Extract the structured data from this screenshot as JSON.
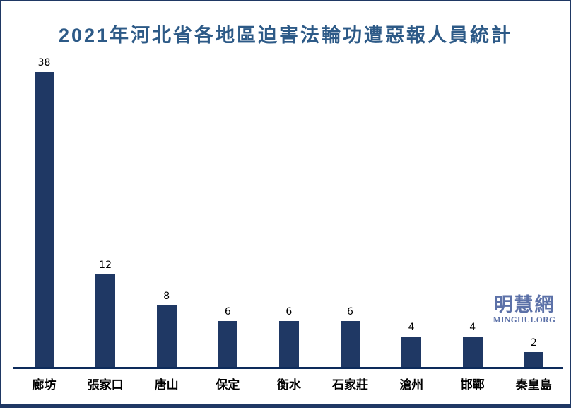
{
  "title": "2021年河北省各地區迫害法輪功遭惡報人員統計",
  "watermark": {
    "cn": "明慧網",
    "en": "MINGHUI.ORG"
  },
  "colors": {
    "bar": "#1F3864",
    "title_text": "#2D5A87",
    "axis_line": "#0D2B5B",
    "watermark_text": "#5C71A8",
    "border": "#1F3864",
    "value_label_text": "#000000",
    "category_label_text": "#000000",
    "background": "#FFFFFF"
  },
  "chart_data": {
    "type": "bar",
    "title": "2021年河北省各地區迫害法輪功遭惡報人員統計",
    "categories": [
      "廊坊",
      "張家口",
      "唐山",
      "保定",
      "衡水",
      "石家莊",
      "滄州",
      "邯鄲",
      "秦皇島"
    ],
    "values": [
      38,
      12,
      8,
      6,
      6,
      6,
      4,
      4,
      2
    ],
    "xlabel": "",
    "ylabel": "",
    "ylim": [
      0,
      40
    ],
    "grid": false,
    "legend": "none",
    "value_labels_shown": true,
    "bar_color": "#1F3864"
  }
}
